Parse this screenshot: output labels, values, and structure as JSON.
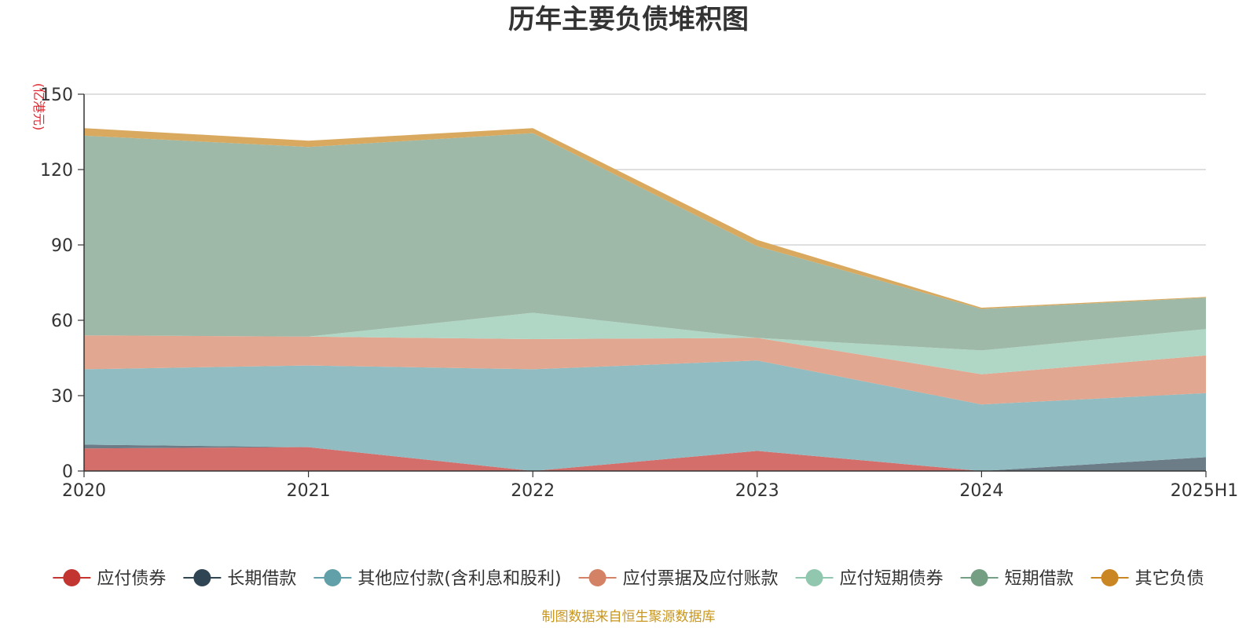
{
  "chart_data": {
    "type": "area",
    "stacked": true,
    "title": "历年主要负债堆积图",
    "unit_label": "(亿港元)",
    "source": "制图数据来自恒生聚源数据库",
    "categories": [
      "2020",
      "2021",
      "2022",
      "2023",
      "2024",
      "2025H1"
    ],
    "ylim": [
      0,
      150
    ],
    "yticks": [
      0,
      30,
      60,
      90,
      120,
      150
    ],
    "grid": true,
    "legend_position": "bottom",
    "series": [
      {
        "name": "应付债券",
        "values": [
          9,
          9.5,
          0,
          8,
          0,
          0
        ],
        "color": "#c23531",
        "fill": "#d46e6b"
      },
      {
        "name": "长期借款",
        "values": [
          1.5,
          0,
          0,
          0,
          0,
          5.5
        ],
        "color": "#2f4554",
        "fill": "#6d7d87"
      },
      {
        "name": "其他应付款(含利息和股利)",
        "values": [
          30,
          32.5,
          40.5,
          36,
          26.5,
          25.5
        ],
        "color": "#61a0a8",
        "fill": "#90bcc2"
      },
      {
        "name": "应付票据及应付账款",
        "values": [
          13.5,
          11.5,
          12,
          9,
          12,
          15
        ],
        "color": "#d48265",
        "fill": "#e1a790"
      },
      {
        "name": "应付短期债券",
        "values": [
          0,
          0,
          10.5,
          0,
          9.5,
          10.5
        ],
        "color": "#91c7ae",
        "fill": "#b0d7c5"
      },
      {
        "name": "短期借款",
        "values": [
          79.5,
          75.5,
          71.5,
          36.5,
          16.5,
          12.5
        ],
        "color": "#749f83",
        "fill": "#9eb9a7"
      },
      {
        "name": "其它负债",
        "values": [
          3,
          2.5,
          2,
          2.5,
          0.5,
          0.3
        ],
        "color": "#ca8622",
        "fill": "#d9a95f"
      }
    ]
  }
}
